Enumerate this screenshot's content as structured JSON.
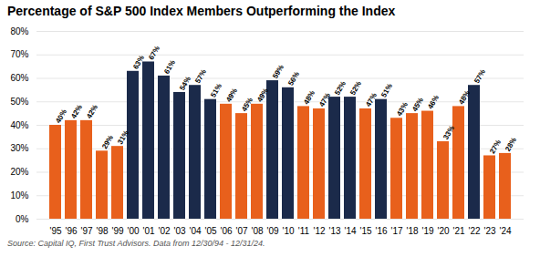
{
  "chart_data": {
    "type": "bar",
    "title": "Percentage of S&P 500 Index Members Outperforming the Index",
    "source": "Source: Capital IQ, First Trust Advisors. Data from 12/30/94 - 12/31/24.",
    "categories": [
      "'95",
      "'96",
      "'97",
      "'98",
      "'99",
      "'00",
      "'01",
      "'02",
      "'03",
      "'04",
      "'05",
      "'06",
      "'07",
      "'08",
      "'09",
      "'10",
      "'11",
      "'12",
      "'13",
      "'14",
      "'15",
      "'16",
      "'17",
      "'18",
      "'19",
      "'20",
      "'21",
      "'22",
      "'23",
      "'24"
    ],
    "values": [
      40,
      42,
      42,
      29,
      31,
      63,
      67,
      61,
      54,
      57,
      51,
      49,
      45,
      49,
      59,
      56,
      48,
      47,
      52,
      52,
      47,
      51,
      43,
      45,
      46,
      33,
      48,
      57,
      27,
      28
    ],
    "value_labels": [
      "40%",
      "42%",
      "42%",
      "29%",
      "31%",
      "63%",
      "67%",
      "61%",
      "54%",
      "57%",
      "51%",
      "49%",
      "45%",
      "49%",
      "59%",
      "56%",
      "48%",
      "47%",
      "52%",
      "52%",
      "47%",
      "51%",
      "43%",
      "45%",
      "46%",
      "33%",
      "48%",
      "57%",
      "27%",
      "28%"
    ],
    "colors": [
      "#E8601C",
      "#E8601C",
      "#E8601C",
      "#E8601C",
      "#E8601C",
      "#1B2A4A",
      "#1B2A4A",
      "#1B2A4A",
      "#1B2A4A",
      "#1B2A4A",
      "#1B2A4A",
      "#E8601C",
      "#E8601C",
      "#E8601C",
      "#1B2A4A",
      "#1B2A4A",
      "#E8601C",
      "#E8601C",
      "#1B2A4A",
      "#1B2A4A",
      "#E8601C",
      "#1B2A4A",
      "#E8601C",
      "#E8601C",
      "#E8601C",
      "#E8601C",
      "#E8601C",
      "#1B2A4A",
      "#E8601C",
      "#E8601C"
    ],
    "ylim": [
      0,
      80
    ],
    "yticks": [
      {
        "value": 0,
        "label": "0%"
      },
      {
        "value": 10,
        "label": "10%"
      },
      {
        "value": 20,
        "label": "20%"
      },
      {
        "value": 30,
        "label": "30%"
      },
      {
        "value": 40,
        "label": "40%"
      },
      {
        "value": 50,
        "label": "50%"
      },
      {
        "value": 60,
        "label": "60%"
      },
      {
        "value": 70,
        "label": "70%"
      },
      {
        "value": 80,
        "label": "80%"
      }
    ],
    "grid": true,
    "data_labels": true
  }
}
